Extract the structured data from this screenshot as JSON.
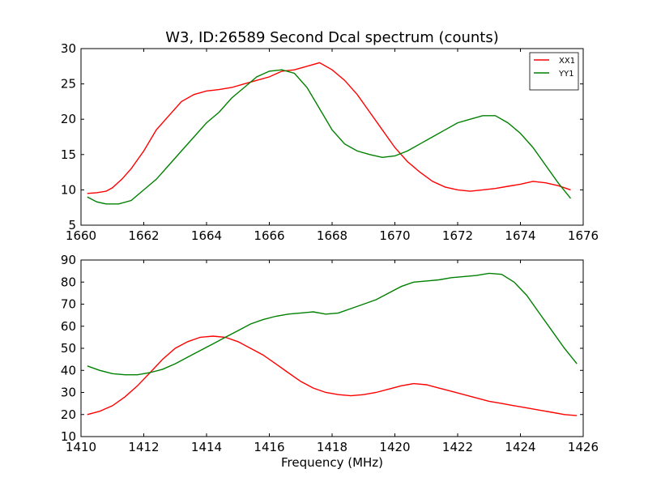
{
  "chart_data": [
    {
      "type": "line",
      "title": "W3, ID:26589 Second Dcal spectrum (counts)",
      "xlabel": "",
      "ylabel": "",
      "xlim": [
        1660,
        1676
      ],
      "ylim": [
        5,
        30
      ],
      "xticks": [
        1660,
        1662,
        1664,
        1666,
        1668,
        1670,
        1672,
        1674,
        1676
      ],
      "yticks": [
        5,
        10,
        15,
        20,
        25,
        30
      ],
      "grid": false,
      "legend": "top-right",
      "series": [
        {
          "name": "XX1",
          "color": "#ff0000",
          "x": [
            1660.2,
            1660.5,
            1660.8,
            1661.0,
            1661.3,
            1661.6,
            1662.0,
            1662.4,
            1662.8,
            1663.2,
            1663.6,
            1664.0,
            1664.4,
            1664.8,
            1665.2,
            1665.6,
            1666.0,
            1666.4,
            1666.8,
            1667.2,
            1667.6,
            1668.0,
            1668.4,
            1668.8,
            1669.2,
            1669.6,
            1670.0,
            1670.4,
            1670.8,
            1671.2,
            1671.6,
            1672.0,
            1672.4,
            1672.8,
            1673.2,
            1673.6,
            1674.0,
            1674.4,
            1674.8,
            1675.2,
            1675.6
          ],
          "y": [
            9.5,
            9.6,
            9.8,
            10.3,
            11.5,
            13.0,
            15.5,
            18.5,
            20.5,
            22.5,
            23.5,
            24.0,
            24.2,
            24.5,
            25.0,
            25.5,
            26.0,
            26.8,
            27.0,
            27.5,
            28.0,
            27.0,
            25.5,
            23.5,
            21.0,
            18.5,
            16.0,
            14.0,
            12.5,
            11.2,
            10.4,
            10.0,
            9.8,
            10.0,
            10.2,
            10.5,
            10.8,
            11.2,
            11.0,
            10.6,
            10.0
          ]
        },
        {
          "name": "YY1",
          "color": "#008000",
          "x": [
            1660.2,
            1660.5,
            1660.8,
            1661.2,
            1661.6,
            1662.0,
            1662.4,
            1662.8,
            1663.2,
            1663.6,
            1664.0,
            1664.4,
            1664.8,
            1665.2,
            1665.6,
            1666.0,
            1666.4,
            1666.8,
            1667.2,
            1667.6,
            1668.0,
            1668.4,
            1668.8,
            1669.2,
            1669.6,
            1670.0,
            1670.4,
            1670.8,
            1671.2,
            1671.6,
            1672.0,
            1672.4,
            1672.8,
            1673.2,
            1673.6,
            1674.0,
            1674.4,
            1674.8,
            1675.2,
            1675.6
          ],
          "y": [
            9.0,
            8.3,
            8.0,
            8.0,
            8.5,
            10.0,
            11.5,
            13.5,
            15.5,
            17.5,
            19.5,
            21.0,
            23.0,
            24.5,
            26.0,
            26.8,
            27.0,
            26.5,
            24.5,
            21.5,
            18.5,
            16.5,
            15.5,
            15.0,
            14.6,
            14.8,
            15.5,
            16.5,
            17.5,
            18.5,
            19.5,
            20.0,
            20.5,
            20.5,
            19.5,
            18.0,
            16.0,
            13.5,
            11.0,
            8.8
          ]
        }
      ]
    },
    {
      "type": "line",
      "title": "",
      "xlabel": "Frequency (MHz)",
      "ylabel": "",
      "xlim": [
        1410,
        1426
      ],
      "ylim": [
        10,
        90
      ],
      "xticks": [
        1410,
        1412,
        1414,
        1416,
        1418,
        1420,
        1422,
        1424,
        1426
      ],
      "yticks": [
        10,
        20,
        30,
        40,
        50,
        60,
        70,
        80,
        90
      ],
      "grid": false,
      "series": [
        {
          "color": "#ff0000",
          "x": [
            1410.2,
            1410.6,
            1411.0,
            1411.4,
            1411.8,
            1412.2,
            1412.6,
            1413.0,
            1413.4,
            1413.8,
            1414.2,
            1414.6,
            1415.0,
            1415.4,
            1415.8,
            1416.2,
            1416.6,
            1417.0,
            1417.4,
            1417.8,
            1418.2,
            1418.6,
            1419.0,
            1419.4,
            1419.8,
            1420.2,
            1420.6,
            1421.0,
            1421.4,
            1421.8,
            1422.2,
            1422.6,
            1423.0,
            1423.4,
            1423.8,
            1424.2,
            1424.6,
            1425.0,
            1425.4,
            1425.8
          ],
          "y": [
            20,
            21.5,
            24,
            28,
            33,
            39,
            45,
            50,
            53,
            55,
            55.5,
            55,
            53,
            50,
            47,
            43,
            39,
            35,
            32,
            30,
            29,
            28.5,
            29,
            30,
            31.5,
            33,
            34,
            33.5,
            32,
            30.5,
            29,
            27.5,
            26,
            25,
            24,
            23,
            22,
            21,
            20,
            19.5
          ]
        },
        {
          "color": "#008000",
          "x": [
            1410.2,
            1410.6,
            1411.0,
            1411.4,
            1411.8,
            1412.2,
            1412.6,
            1413.0,
            1413.4,
            1413.8,
            1414.2,
            1414.6,
            1415.0,
            1415.4,
            1415.8,
            1416.2,
            1416.6,
            1417.0,
            1417.4,
            1417.8,
            1418.2,
            1418.6,
            1419.0,
            1419.4,
            1419.8,
            1420.2,
            1420.6,
            1421.0,
            1421.4,
            1421.8,
            1422.2,
            1422.6,
            1423.0,
            1423.4,
            1423.8,
            1424.2,
            1424.6,
            1425.0,
            1425.4,
            1425.8
          ],
          "y": [
            42,
            40,
            38.5,
            38,
            38,
            39,
            40.5,
            43,
            46,
            49,
            52,
            55,
            58,
            61,
            63,
            64.5,
            65.5,
            66,
            66.5,
            65.5,
            66,
            68,
            70,
            72,
            75,
            78,
            80,
            80.5,
            81,
            82,
            82.5,
            83,
            84,
            83.5,
            80,
            74,
            66,
            58,
            50,
            43
          ]
        }
      ]
    }
  ]
}
